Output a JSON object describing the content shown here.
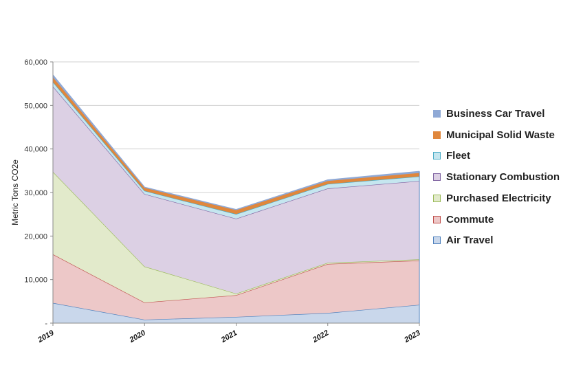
{
  "chart_data": {
    "type": "area",
    "stacked": true,
    "categories": [
      "2019",
      "2020",
      "2021",
      "2022",
      "2023"
    ],
    "ylabel": "Metric Tons CO2e",
    "ylim": [
      0,
      60000
    ],
    "yticks": [
      "-",
      "10,000",
      "20,000",
      "30,000",
      "40,000",
      "50,000",
      "60,000"
    ],
    "grid": true,
    "legend_position": "right",
    "series": [
      {
        "name": "Air Travel",
        "values": [
          4630,
          790,
          1420,
          2320,
          4210
        ],
        "fill": "#c9d7eb",
        "stroke": "#4f81bd"
      },
      {
        "name": "Commute",
        "values": [
          11170,
          3950,
          5000,
          11260,
          10170
        ],
        "fill": "#edc8c8",
        "stroke": "#c0504d"
      },
      {
        "name": "Purchased Electricity",
        "values": [
          18950,
          8260,
          350,
          270,
          270
        ],
        "fill": "#e2eacb",
        "stroke": "#9bbb59"
      },
      {
        "name": "Stationary Combustion",
        "values": [
          19600,
          16650,
          17220,
          17070,
          18000
        ],
        "fill": "#dcd0e4",
        "stroke": "#8064a2"
      },
      {
        "name": "Fleet",
        "values": [
          1050,
          730,
          1050,
          1030,
          1050
        ],
        "fill": "#c5e6ef",
        "stroke": "#4bacc6"
      },
      {
        "name": "Municipal Solid Waste",
        "values": [
          1050,
          680,
          890,
          700,
          790
        ],
        "fill": "#e0873c",
        "stroke": "#e0873c"
      },
      {
        "name": "Business Car Travel",
        "values": [
          550,
          170,
          160,
          250,
          370
        ],
        "fill": "#8fa9d6",
        "stroke": "#8fa9d6"
      }
    ]
  }
}
